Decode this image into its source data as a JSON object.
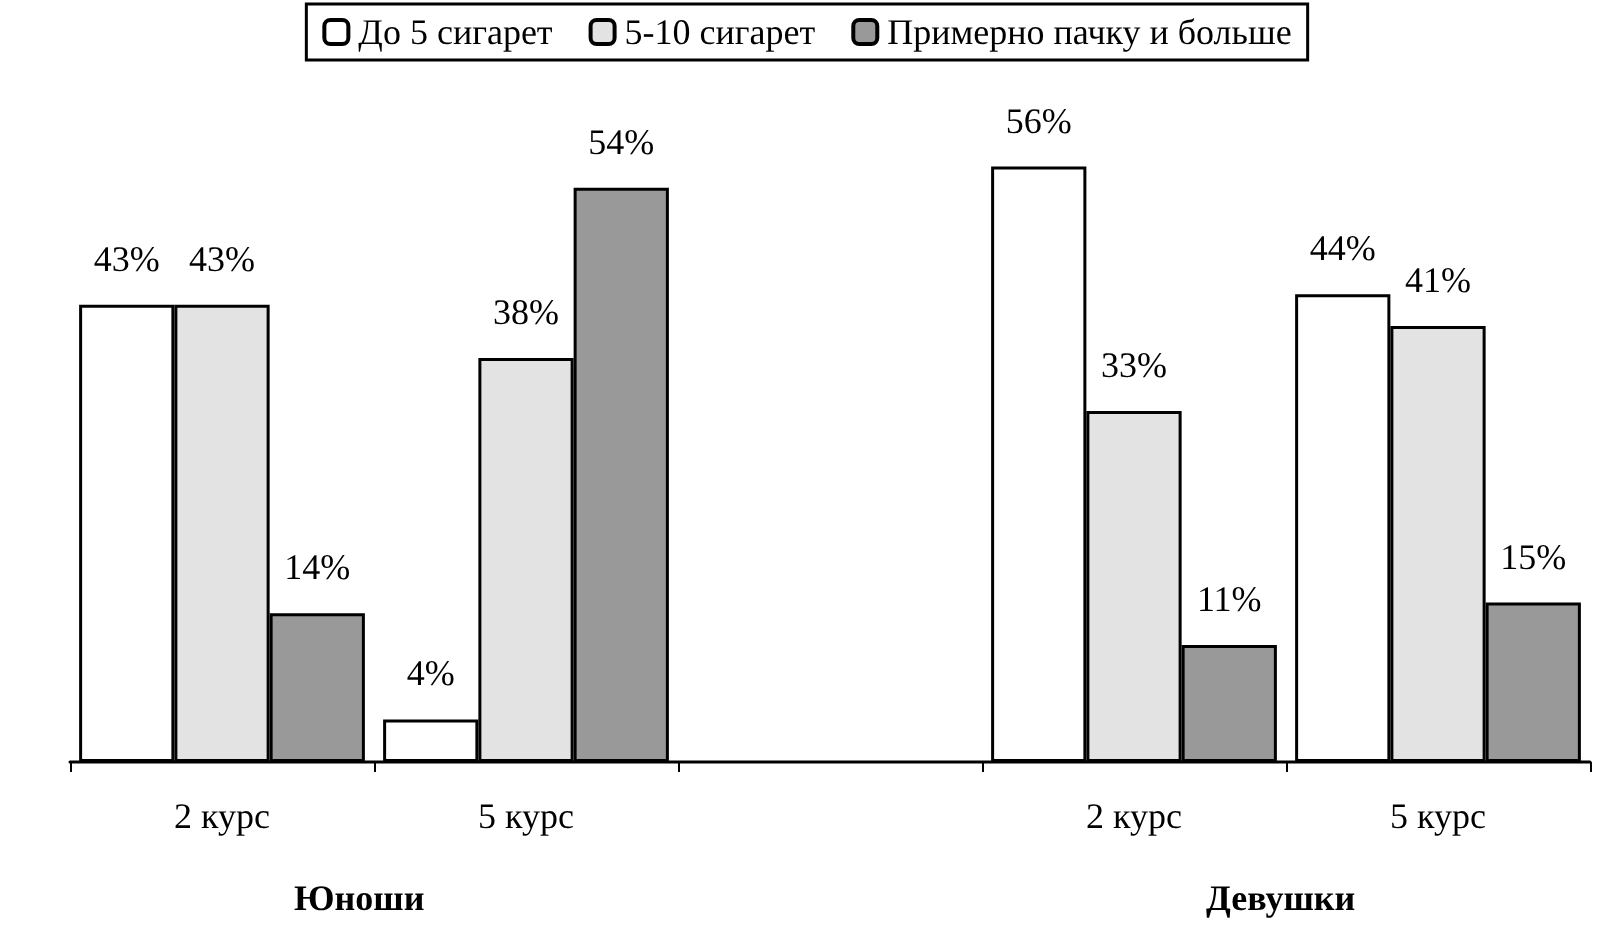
{
  "chart_data": {
    "type": "bar",
    "categories": [
      "2 курс",
      "5 курс",
      null,
      "2 курс",
      "5 курс"
    ],
    "series": [
      {
        "name": "До 5 сигарет",
        "color": "#ffffff",
        "values": [
          43,
          4,
          null,
          56,
          44
        ],
        "value_labels": [
          "43%",
          "4%",
          null,
          "56%",
          "44%"
        ]
      },
      {
        "name": "5-10 сигарет",
        "color": "#e3e3e3",
        "values": [
          43,
          38,
          null,
          33,
          41
        ],
        "value_labels": [
          "43%",
          "38%",
          null,
          "33%",
          "41%"
        ]
      },
      {
        "name": "Примерно пачку и больше",
        "color": "#999999",
        "values": [
          14,
          54,
          null,
          11,
          15
        ],
        "value_labels": [
          "14%",
          "54%",
          null,
          "11%",
          "15%"
        ]
      }
    ],
    "annotations": [
      "Юноши",
      "Девушки"
    ],
    "legend": "top",
    "grid": false
  }
}
